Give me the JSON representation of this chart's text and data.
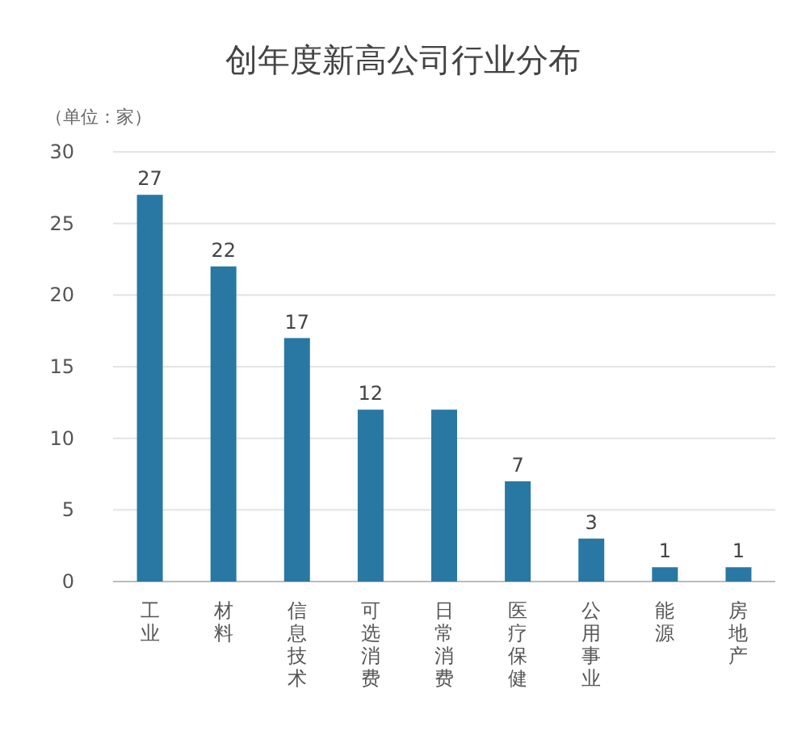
{
  "chart_data": {
    "type": "bar",
    "title": "创年度新高公司行业分布",
    "ylabel": "（单位：家）",
    "categories": [
      "工业",
      "材料",
      "信息技术",
      "可选消费",
      "日常消费",
      "医疗保健",
      "公用事业",
      "能源",
      "房地产"
    ],
    "values": [
      27,
      22,
      17,
      12,
      12,
      7,
      3,
      1,
      1
    ],
    "value_labels": [
      "27",
      "22",
      "17",
      "12",
      null,
      "7",
      "3",
      "1",
      "1"
    ],
    "color": "#2878a3",
    "ylim": [
      0,
      30
    ],
    "yticks": [
      0,
      5,
      10,
      15,
      20,
      25,
      30
    ],
    "grid": "y"
  }
}
